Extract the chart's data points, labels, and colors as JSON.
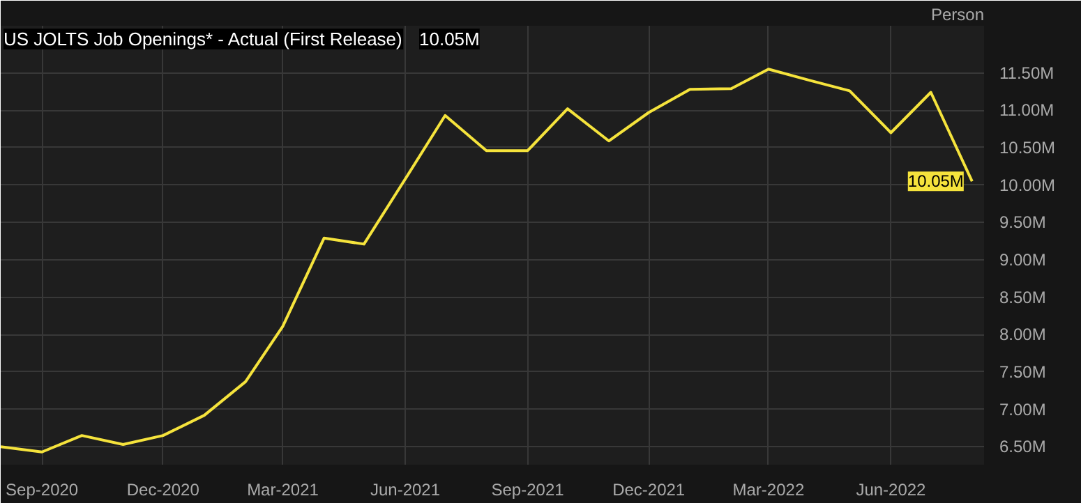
{
  "chart_data": {
    "type": "line",
    "title": "US JOLTS Job Openings* - Actual (First Release)",
    "ylabel": "Person",
    "x": [
      "2020-08-01",
      "2020-09-01",
      "2020-10-01",
      "2020-11-01",
      "2020-12-01",
      "2021-01-01",
      "2021-02-01",
      "2021-03-01",
      "2021-04-01",
      "2021-05-01",
      "2021-06-01",
      "2021-07-01",
      "2021-08-01",
      "2021-09-01",
      "2021-10-01",
      "2021-11-01",
      "2021-12-01",
      "2022-01-01",
      "2022-02-01",
      "2022-03-01",
      "2022-04-01",
      "2022-05-01",
      "2022-06-01",
      "2022-07-01",
      "2022-08-01"
    ],
    "series": [
      {
        "color": "#f5e33c",
        "values": [
          6.5,
          6.43,
          6.65,
          6.53,
          6.65,
          6.92,
          7.37,
          8.11,
          9.29,
          9.21,
          10.08,
          10.93,
          10.46,
          10.46,
          11.02,
          10.59,
          10.97,
          11.28,
          11.29,
          11.55,
          11.4,
          11.26,
          10.7,
          11.24,
          10.05
        ]
      }
    ],
    "annotations": [
      "10.05M",
      {
        "text": "10.05M",
        "x": "2022-08-01",
        "y": 10.05
      }
    ],
    "xlim": [
      "2020-08-01",
      "2022-08-10"
    ],
    "xticks": [
      {
        "value": "2020-09-01",
        "label": "Sep-2020"
      },
      {
        "value": "2020-12-01",
        "label": "Dec-2020"
      },
      {
        "value": "2021-03-01",
        "label": "Mar-2021"
      },
      {
        "value": "2021-06-01",
        "label": "Jun-2021"
      },
      {
        "value": "2021-09-01",
        "label": "Sep-2021"
      },
      {
        "value": "2021-12-01",
        "label": "Dec-2021"
      },
      {
        "value": "2022-03-01",
        "label": "Mar-2022"
      },
      {
        "value": "2022-06-01",
        "label": "Jun-2022"
      }
    ],
    "ylim": [
      6.26,
      12.13
    ],
    "yticks": [
      {
        "value": 6.5,
        "label": "6.50M"
      },
      {
        "value": 7.0,
        "label": "7.00M"
      },
      {
        "value": 7.5,
        "label": "7.50M"
      },
      {
        "value": 8.0,
        "label": "8.00M"
      },
      {
        "value": 8.5,
        "label": "8.50M"
      },
      {
        "value": 9.0,
        "label": "9.00M"
      },
      {
        "value": 9.5,
        "label": "9.50M"
      },
      {
        "value": 10.0,
        "label": "10.00M"
      },
      {
        "value": 10.5,
        "label": "10.50M"
      },
      {
        "value": 11.0,
        "label": "11.00M"
      },
      {
        "value": 11.5,
        "label": "11.50M"
      }
    ],
    "grid": true,
    "line_style": "solid"
  }
}
